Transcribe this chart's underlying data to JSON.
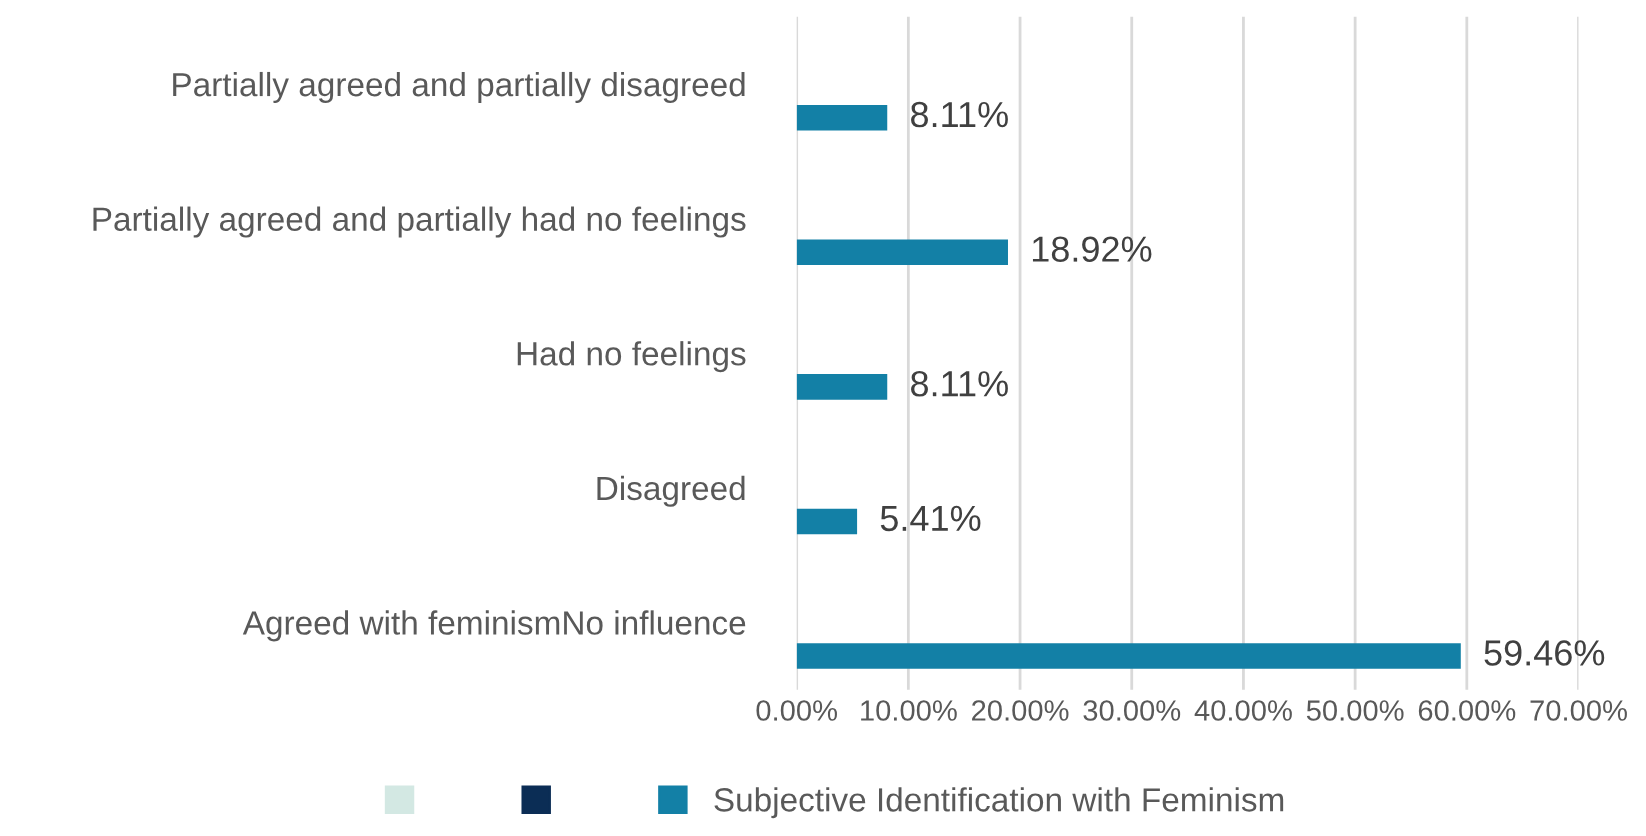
{
  "chart_data": {
    "type": "bar",
    "orientation": "horizontal",
    "categories": [
      "Partially agreed and partially disagreed",
      "Partially agreed and partially had no feelings",
      "Had no feelings",
      "Disagreed",
      "Agreed with feminismNo influence"
    ],
    "series": [
      {
        "color": "#d3e8e3",
        "values": [
          null,
          null,
          null,
          null,
          null
        ]
      },
      {
        "color": "#0b2d55",
        "values": [
          null,
          null,
          null,
          null,
          null
        ]
      },
      {
        "name": "Subjective Identification with Feminism",
        "color": "#1380a6",
        "values": [
          8.11,
          18.92,
          8.11,
          5.41,
          59.46
        ],
        "value_labels": [
          "8.11%",
          "18.92%",
          "8.11%",
          "5.41%",
          "59.46%"
        ]
      }
    ],
    "xlim": [
      0,
      70
    ],
    "xticks": [
      {
        "value": 0,
        "label": "0.00%"
      },
      {
        "value": 10,
        "label": "10.00%"
      },
      {
        "value": 20,
        "label": "20.00%"
      },
      {
        "value": 30,
        "label": "30.00%"
      },
      {
        "value": 40,
        "label": "40.00%"
      },
      {
        "value": 50,
        "label": "50.00%"
      },
      {
        "value": 60,
        "label": "60.00%"
      },
      {
        "value": 70,
        "label": "70.00%"
      }
    ],
    "grid": "x",
    "legend": "bottom"
  }
}
